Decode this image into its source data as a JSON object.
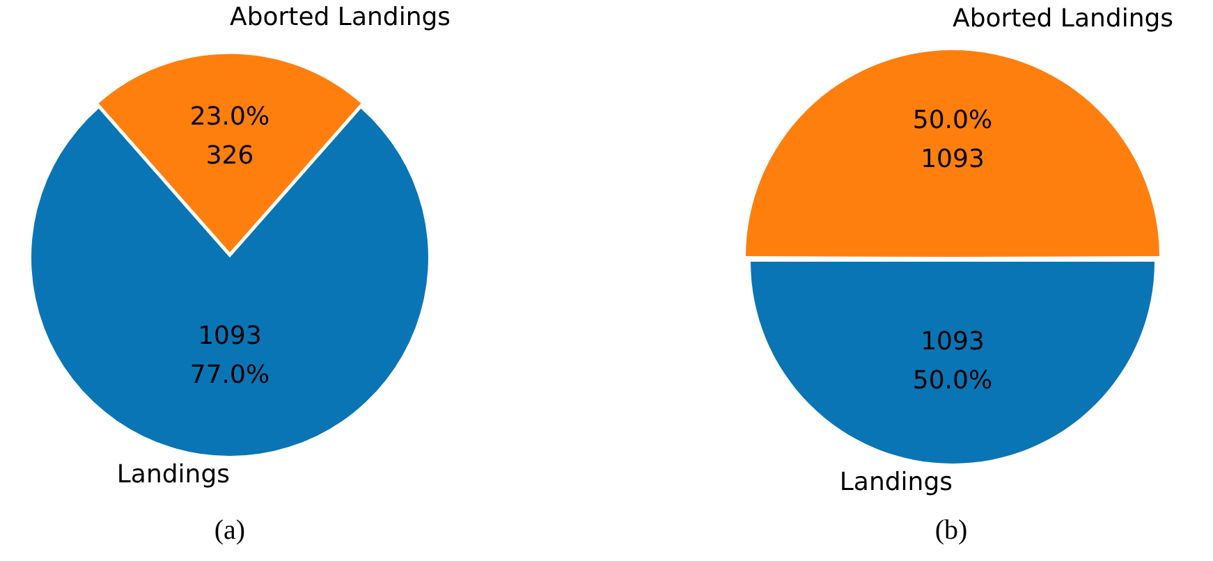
{
  "chart_data": [
    {
      "type": "pie",
      "categories": [
        "Aborted Landings",
        "Landings"
      ],
      "values": [
        326,
        1093
      ],
      "colors": [
        "#ff7f0e",
        "#0a75b5"
      ],
      "value_labels": [
        "23.0%\n326",
        "1093\n77.0%"
      ],
      "annotations": [
        "(a)"
      ]
    },
    {
      "type": "pie",
      "categories": [
        "Aborted Landings",
        "Landings"
      ],
      "values": [
        1093,
        1093
      ],
      "colors": [
        "#ff7f0e",
        "#0a75b5"
      ],
      "value_labels": [
        "50.0%\n1093",
        "1093\n50.0%"
      ],
      "annotations": [
        "(b)"
      ]
    }
  ]
}
